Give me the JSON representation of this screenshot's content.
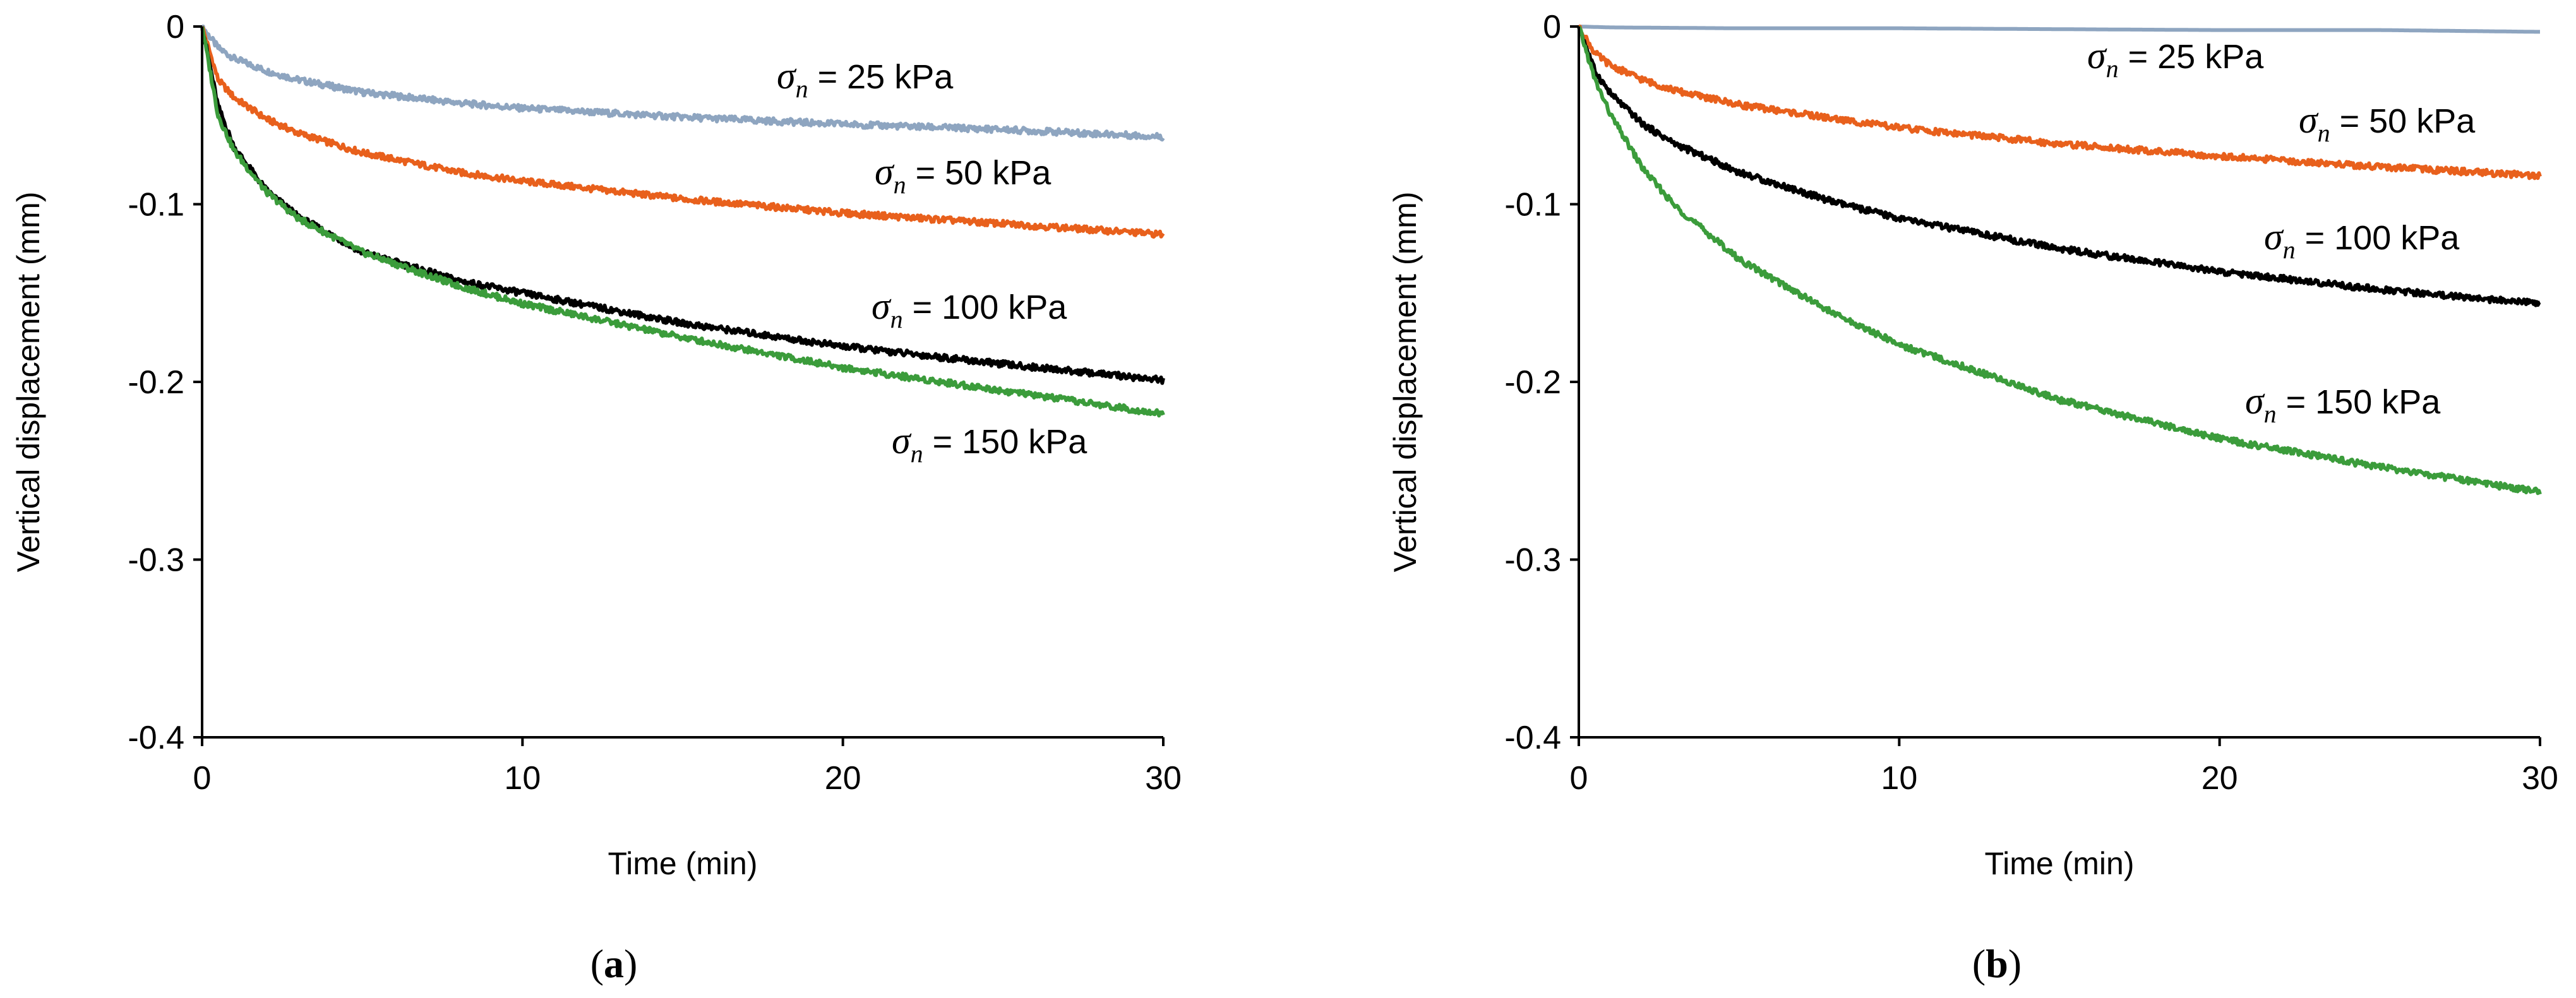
{
  "chart_data": [
    {
      "type": "line",
      "panel": "a",
      "caption": "(a)",
      "caption_letter": "a",
      "title": "",
      "xlabel": "Time (min)",
      "ylabel": "Vertical displacement (mm)",
      "xlim": [
        0,
        30
      ],
      "ylim": [
        -0.4,
        0
      ],
      "xticks": [
        0,
        10,
        20,
        30
      ],
      "yticks": [
        0,
        -0.1,
        -0.2,
        -0.3,
        -0.4
      ],
      "xtick_labels": [
        "0",
        "10",
        "20",
        "30"
      ],
      "ytick_labels": [
        "0",
        "-0.1",
        "-0.2",
        "-0.3",
        "-0.4"
      ],
      "grid": false,
      "series": [
        {
          "name": "σn = 25 kPa",
          "stress": "25 kPa",
          "color": "#8ea5c0",
          "x": [
            0,
            0.5,
            1,
            2,
            3,
            5,
            8,
            10,
            15,
            20,
            25,
            30
          ],
          "y": [
            0,
            -0.012,
            -0.018,
            -0.025,
            -0.03,
            -0.037,
            -0.043,
            -0.046,
            -0.051,
            -0.055,
            -0.058,
            -0.062
          ]
        },
        {
          "name": "σn = 50 kPa",
          "stress": "50 kPa",
          "color": "#e8601c",
          "x": [
            0,
            0.5,
            1,
            2,
            3,
            5,
            8,
            10,
            15,
            20,
            25,
            30
          ],
          "y": [
            0,
            -0.03,
            -0.04,
            -0.052,
            -0.06,
            -0.071,
            -0.082,
            -0.087,
            -0.097,
            -0.105,
            -0.111,
            -0.117
          ]
        },
        {
          "name": "σn = 100 kPa",
          "stress": "100 kPa",
          "color": "#000000",
          "x": [
            0,
            0.5,
            1,
            2,
            3,
            5,
            8,
            10,
            15,
            20,
            25,
            30
          ],
          "y": [
            0,
            -0.045,
            -0.068,
            -0.092,
            -0.107,
            -0.127,
            -0.143,
            -0.15,
            -0.167,
            -0.18,
            -0.19,
            -0.199
          ]
        },
        {
          "name": "σn = 150 kPa",
          "stress": "150 kPa",
          "color": "#3b9c3b",
          "x": [
            0,
            0.5,
            1,
            2,
            3,
            5,
            8,
            10,
            15,
            20,
            25,
            30
          ],
          "y": [
            0,
            -0.05,
            -0.07,
            -0.093,
            -0.108,
            -0.127,
            -0.146,
            -0.156,
            -0.175,
            -0.192,
            -0.205,
            -0.218
          ]
        }
      ],
      "annotations": [
        {
          "series": "σn = 25 kPa",
          "suffix": " = 25 kPa"
        },
        {
          "series": "σn = 50 kPa",
          "suffix": " = 50 kPa"
        },
        {
          "series": "σn = 100 kPa",
          "suffix": " = 100 kPa"
        },
        {
          "series": "σn = 150 kPa",
          "suffix": " = 150 kPa"
        }
      ]
    },
    {
      "type": "line",
      "panel": "b",
      "caption": "(b)",
      "caption_letter": "b",
      "title": "",
      "xlabel": "Time (min)",
      "ylabel": "Vertical displacement (mm)",
      "xlim": [
        0,
        30
      ],
      "ylim": [
        -0.4,
        0
      ],
      "xticks": [
        0,
        10,
        20,
        30
      ],
      "yticks": [
        0,
        -0.1,
        -0.2,
        -0.3,
        -0.4
      ],
      "xtick_labels": [
        "0",
        "10",
        "20",
        "30"
      ],
      "ytick_labels": [
        "0",
        "-0.1",
        "-0.2",
        "-0.3",
        "-0.4"
      ],
      "grid": false,
      "series": [
        {
          "name": "σn = 25 kPa",
          "stress": "25 kPa",
          "color": "#8ea5c0",
          "x": [
            0,
            1,
            5,
            10,
            15,
            20,
            25,
            30
          ],
          "y": [
            0,
            -0.0005,
            -0.001,
            -0.001,
            -0.0015,
            -0.002,
            -0.002,
            -0.003
          ]
        },
        {
          "name": "σn = 50 kPa",
          "stress": "50 kPa",
          "color": "#e8601c",
          "x": [
            0,
            0.5,
            1,
            2,
            3,
            5,
            8,
            10,
            15,
            20,
            25,
            30
          ],
          "y": [
            0,
            -0.015,
            -0.022,
            -0.03,
            -0.036,
            -0.044,
            -0.052,
            -0.057,
            -0.066,
            -0.073,
            -0.079,
            -0.084
          ]
        },
        {
          "name": "σn = 100 kPa",
          "stress": "100 kPa",
          "color": "#000000",
          "x": [
            0,
            0.5,
            1,
            2,
            3,
            5,
            8,
            10,
            15,
            20,
            25,
            30
          ],
          "y": [
            0,
            -0.025,
            -0.038,
            -0.055,
            -0.066,
            -0.082,
            -0.099,
            -0.108,
            -0.125,
            -0.138,
            -0.148,
            -0.156
          ]
        },
        {
          "name": "σn = 150 kPa",
          "stress": "150 kPa",
          "color": "#3b9c3b",
          "x": [
            0,
            0.5,
            1,
            2,
            3,
            5,
            8,
            10,
            15,
            20,
            25,
            30
          ],
          "y": [
            0,
            -0.03,
            -0.05,
            -0.08,
            -0.101,
            -0.131,
            -0.162,
            -0.179,
            -0.21,
            -0.232,
            -0.248,
            -0.262
          ]
        }
      ],
      "annotations": [
        {
          "series": "σn = 25 kPa",
          "suffix": " = 25 kPa"
        },
        {
          "series": "σn = 50 kPa",
          "suffix": " = 50 kPa"
        },
        {
          "series": "σn = 100 kPa",
          "suffix": " = 100 kPa"
        },
        {
          "series": "σn = 150 kPa",
          "suffix": " = 150 kPa"
        }
      ]
    }
  ]
}
